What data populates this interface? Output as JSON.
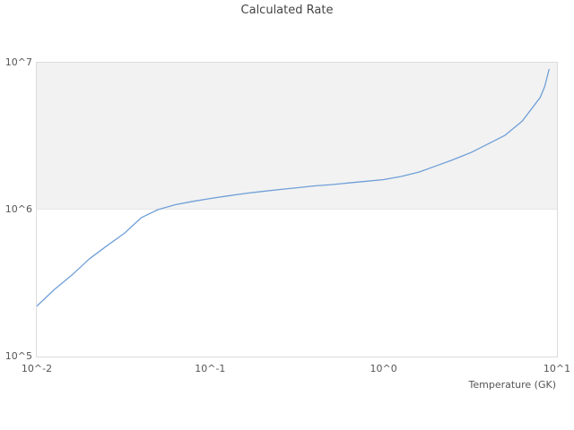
{
  "title": "Calculated Rate",
  "x_axis": {
    "title": "Temperature (GK)"
  },
  "colors": {
    "line": "#6f9fd8",
    "band_fill": "#f2f2f2",
    "plot_border": "#dcdcdc",
    "tick_text": "#555555",
    "title_text": "#444444"
  },
  "chart_data": {
    "type": "line",
    "title": "Calculated Rate",
    "xlabel": "Temperature (GK)",
    "ylabel": "",
    "x_scale": "log",
    "y_scale": "log",
    "xlim": [
      0.01,
      10
    ],
    "ylim": [
      100000,
      10000000
    ],
    "x_tick_values": [
      0.01,
      0.1,
      1,
      10
    ],
    "x_tick_labels": [
      "10^-2",
      "10^-1",
      "10^0",
      "10^1"
    ],
    "y_tick_values": [
      100000,
      1000000,
      10000000
    ],
    "y_tick_labels": [
      "10^5",
      "10^6",
      "10^7"
    ],
    "grid": false,
    "legend": false,
    "shaded_band": {
      "y_from": 1000000,
      "y_to": 10000000
    },
    "series": [
      {
        "name": "Calculated Rate",
        "color": "#6f9fd8",
        "x": [
          0.01,
          0.0126,
          0.016,
          0.02,
          0.025,
          0.032,
          0.04,
          0.05,
          0.063,
          0.08,
          0.1,
          0.126,
          0.16,
          0.2,
          0.25,
          0.32,
          0.4,
          0.5,
          0.63,
          0.8,
          1.0,
          1.26,
          1.6,
          2.0,
          2.5,
          3.2,
          4.0,
          5.0,
          6.3,
          8.0,
          8.5,
          9.0
        ],
        "y": [
          220000,
          285000,
          360000,
          460000,
          560000,
          690000,
          880000,
          1000000,
          1080000,
          1140000,
          1190000,
          1240000,
          1290000,
          1330000,
          1370000,
          1410000,
          1450000,
          1480000,
          1520000,
          1560000,
          1600000,
          1680000,
          1800000,
          1980000,
          2180000,
          2450000,
          2800000,
          3200000,
          4000000,
          5800000,
          6900000,
          9000000
        ]
      }
    ]
  }
}
